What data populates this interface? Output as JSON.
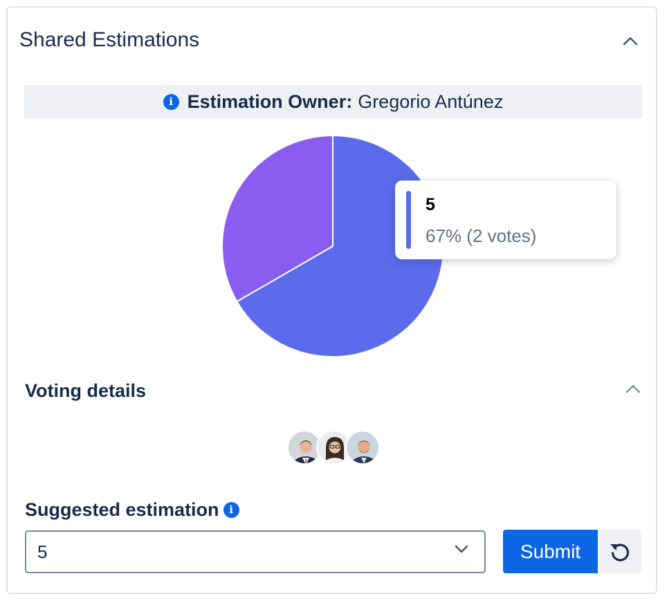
{
  "panel": {
    "title": "Shared Estimations",
    "collapse_icon": "chevron-up-icon"
  },
  "owner": {
    "label": "Estimation Owner:",
    "name": "Gregorio Antúnez",
    "icon": "info-icon"
  },
  "chart_data": {
    "type": "pie",
    "slices": [
      {
        "label": "5",
        "value": 2,
        "percent": 67,
        "color": "#5b6bec"
      },
      {
        "label": "",
        "value": 1,
        "percent": 33,
        "color": "#8b5cf0"
      }
    ],
    "tooltip": {
      "label": "5",
      "detail": "67% (2 votes)"
    }
  },
  "voting_details": {
    "title": "Voting details",
    "collapse_icon": "chevron-up-icon",
    "voters": [
      "avatar-1",
      "avatar-2",
      "avatar-3"
    ]
  },
  "suggested": {
    "label": "Suggested estimation",
    "selected_value": "5",
    "submit_label": "Submit",
    "reset_icon": "reset-icon"
  }
}
